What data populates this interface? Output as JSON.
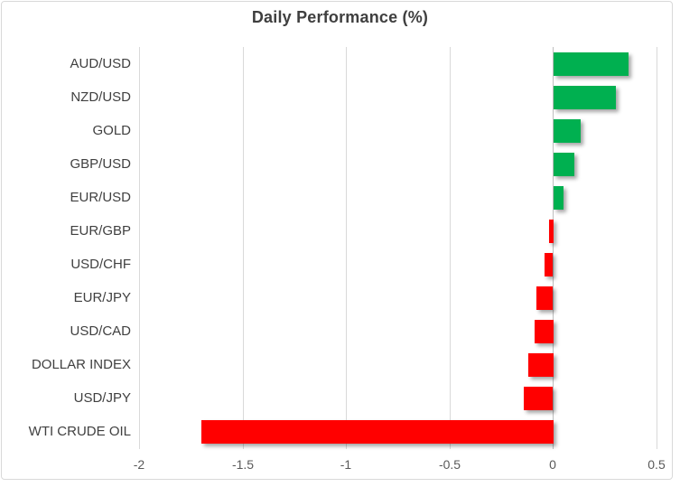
{
  "chart_data": {
    "type": "bar",
    "orientation": "horizontal",
    "title": "Daily Performance (%)",
    "categories": [
      "AUD/USD",
      "NZD/USD",
      "GOLD",
      "GBP/USD",
      "EUR/USD",
      "EUR/GBP",
      "USD/CHF",
      "EUR/JPY",
      "USD/CAD",
      "DOLLAR INDEX",
      "USD/JPY",
      "WTI CRUDE OIL"
    ],
    "values": [
      0.36,
      0.3,
      0.13,
      0.1,
      0.05,
      -0.02,
      -0.04,
      -0.08,
      -0.09,
      -0.12,
      -0.14,
      -1.7
    ],
    "xlim": [
      -2,
      0.5
    ],
    "x_ticks": [
      -2,
      -1.5,
      -1,
      -0.5,
      0,
      0.5
    ],
    "x_tick_labels": [
      "-2",
      "-1.5",
      "-1",
      "-0.5",
      "0",
      "0.5"
    ],
    "grid": true,
    "legend": "none",
    "positive_color": "#00b050",
    "negative_color": "#ff0000",
    "gridline_color": "#d9d9d9",
    "frame_border_color": "#d9d9d9",
    "title_color": "#3f3f3f",
    "category_label_color": "#404040",
    "tick_label_color": "#595959"
  }
}
